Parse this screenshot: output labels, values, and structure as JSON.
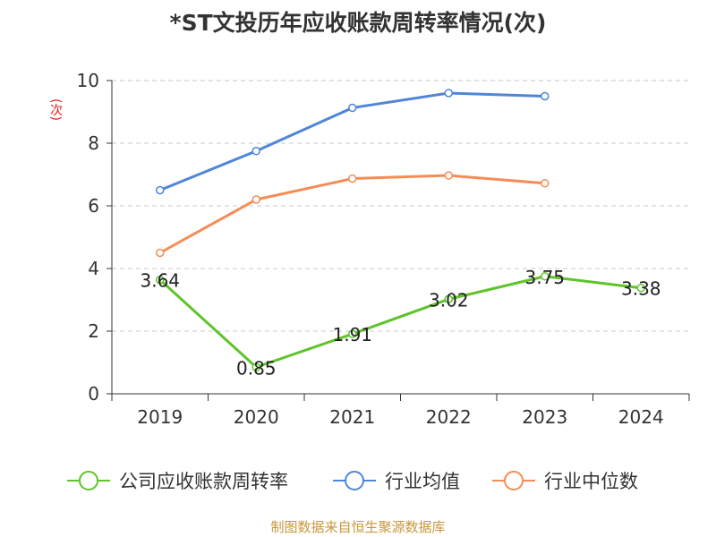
{
  "chart_data": {
    "type": "line",
    "title": "*ST文投历年应收账款周转率情况(次)",
    "ylabel": "(次)",
    "categories": [
      "2019",
      "2020",
      "2021",
      "2022",
      "2023",
      "2024"
    ],
    "ylim": [
      0,
      10
    ],
    "yticks": [
      0,
      2,
      4,
      6,
      8,
      10
    ],
    "grid": true,
    "legend_position": "bottom",
    "series": [
      {
        "name": "公司应收账款周转率",
        "color": "#5ec42a",
        "values": [
          3.64,
          0.85,
          1.91,
          3.02,
          3.75,
          3.38
        ],
        "labels": [
          "3.64",
          "0.85",
          "1.91",
          "3.02",
          "3.75",
          "3.38"
        ]
      },
      {
        "name": "行业均值",
        "color": "#4f86d9",
        "values": [
          6.5,
          7.75,
          9.13,
          9.6,
          9.5,
          null
        ]
      },
      {
        "name": "行业中位数",
        "color": "#f58c55",
        "values": [
          4.5,
          6.2,
          6.87,
          6.97,
          6.72,
          null
        ]
      }
    ]
  },
  "source": "制图数据来自恒生聚源数据库"
}
